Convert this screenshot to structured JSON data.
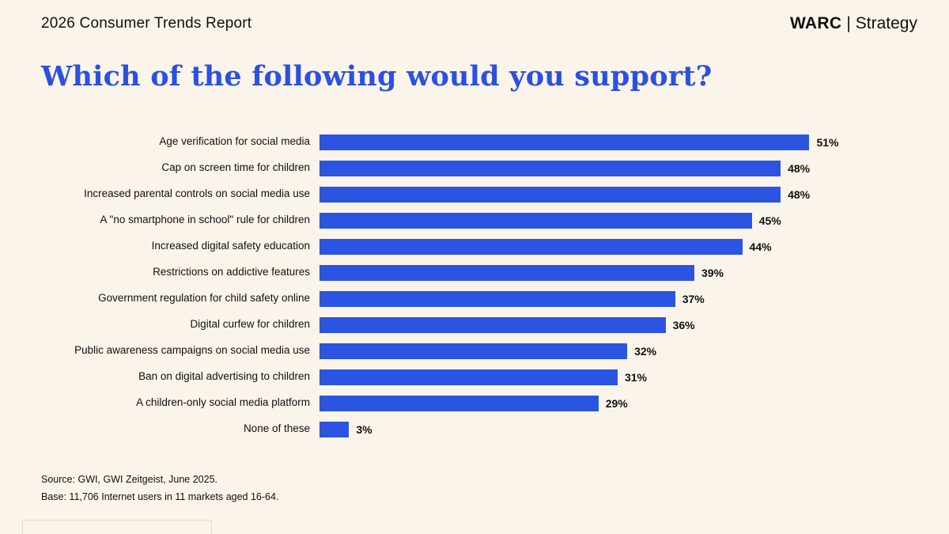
{
  "header": {
    "report_title": "2026 Consumer Trends Report",
    "brand": "WARC",
    "brand_divider": "|",
    "brand_suffix": "Strategy"
  },
  "title": "Which of the following would you support?",
  "chart_data": {
    "type": "bar",
    "orientation": "horizontal",
    "title": "Which of the following would you support?",
    "categories": [
      "Age verification for social media",
      "Cap on screen time for children",
      "Increased parental controls on social media use",
      "A \"no smartphone in school\" rule for children",
      "Increased digital safety education",
      "Restrictions on addictive features",
      "Government regulation for child safety online",
      "Digital curfew for children",
      "Public awareness campaigns on social media use",
      "Ban on digital advertising to children",
      "A children-only social media platform",
      "None of these"
    ],
    "values": [
      51,
      48,
      48,
      45,
      44,
      39,
      37,
      36,
      32,
      31,
      29,
      3
    ],
    "value_suffix": "%",
    "xlim": [
      0,
      55
    ],
    "bar_color": "#2B54E2",
    "grid": false,
    "legend": false,
    "data_labels": "outside-end"
  },
  "footer": {
    "source": "Source: GWI, GWI Zeitgeist, June 2025.",
    "base": "Base: 11,706 Internet users in 11 markets aged 16-64."
  },
  "colors": {
    "background": "#FAF4EA",
    "accent_blue": "#2B54E2",
    "text": "#111111"
  }
}
